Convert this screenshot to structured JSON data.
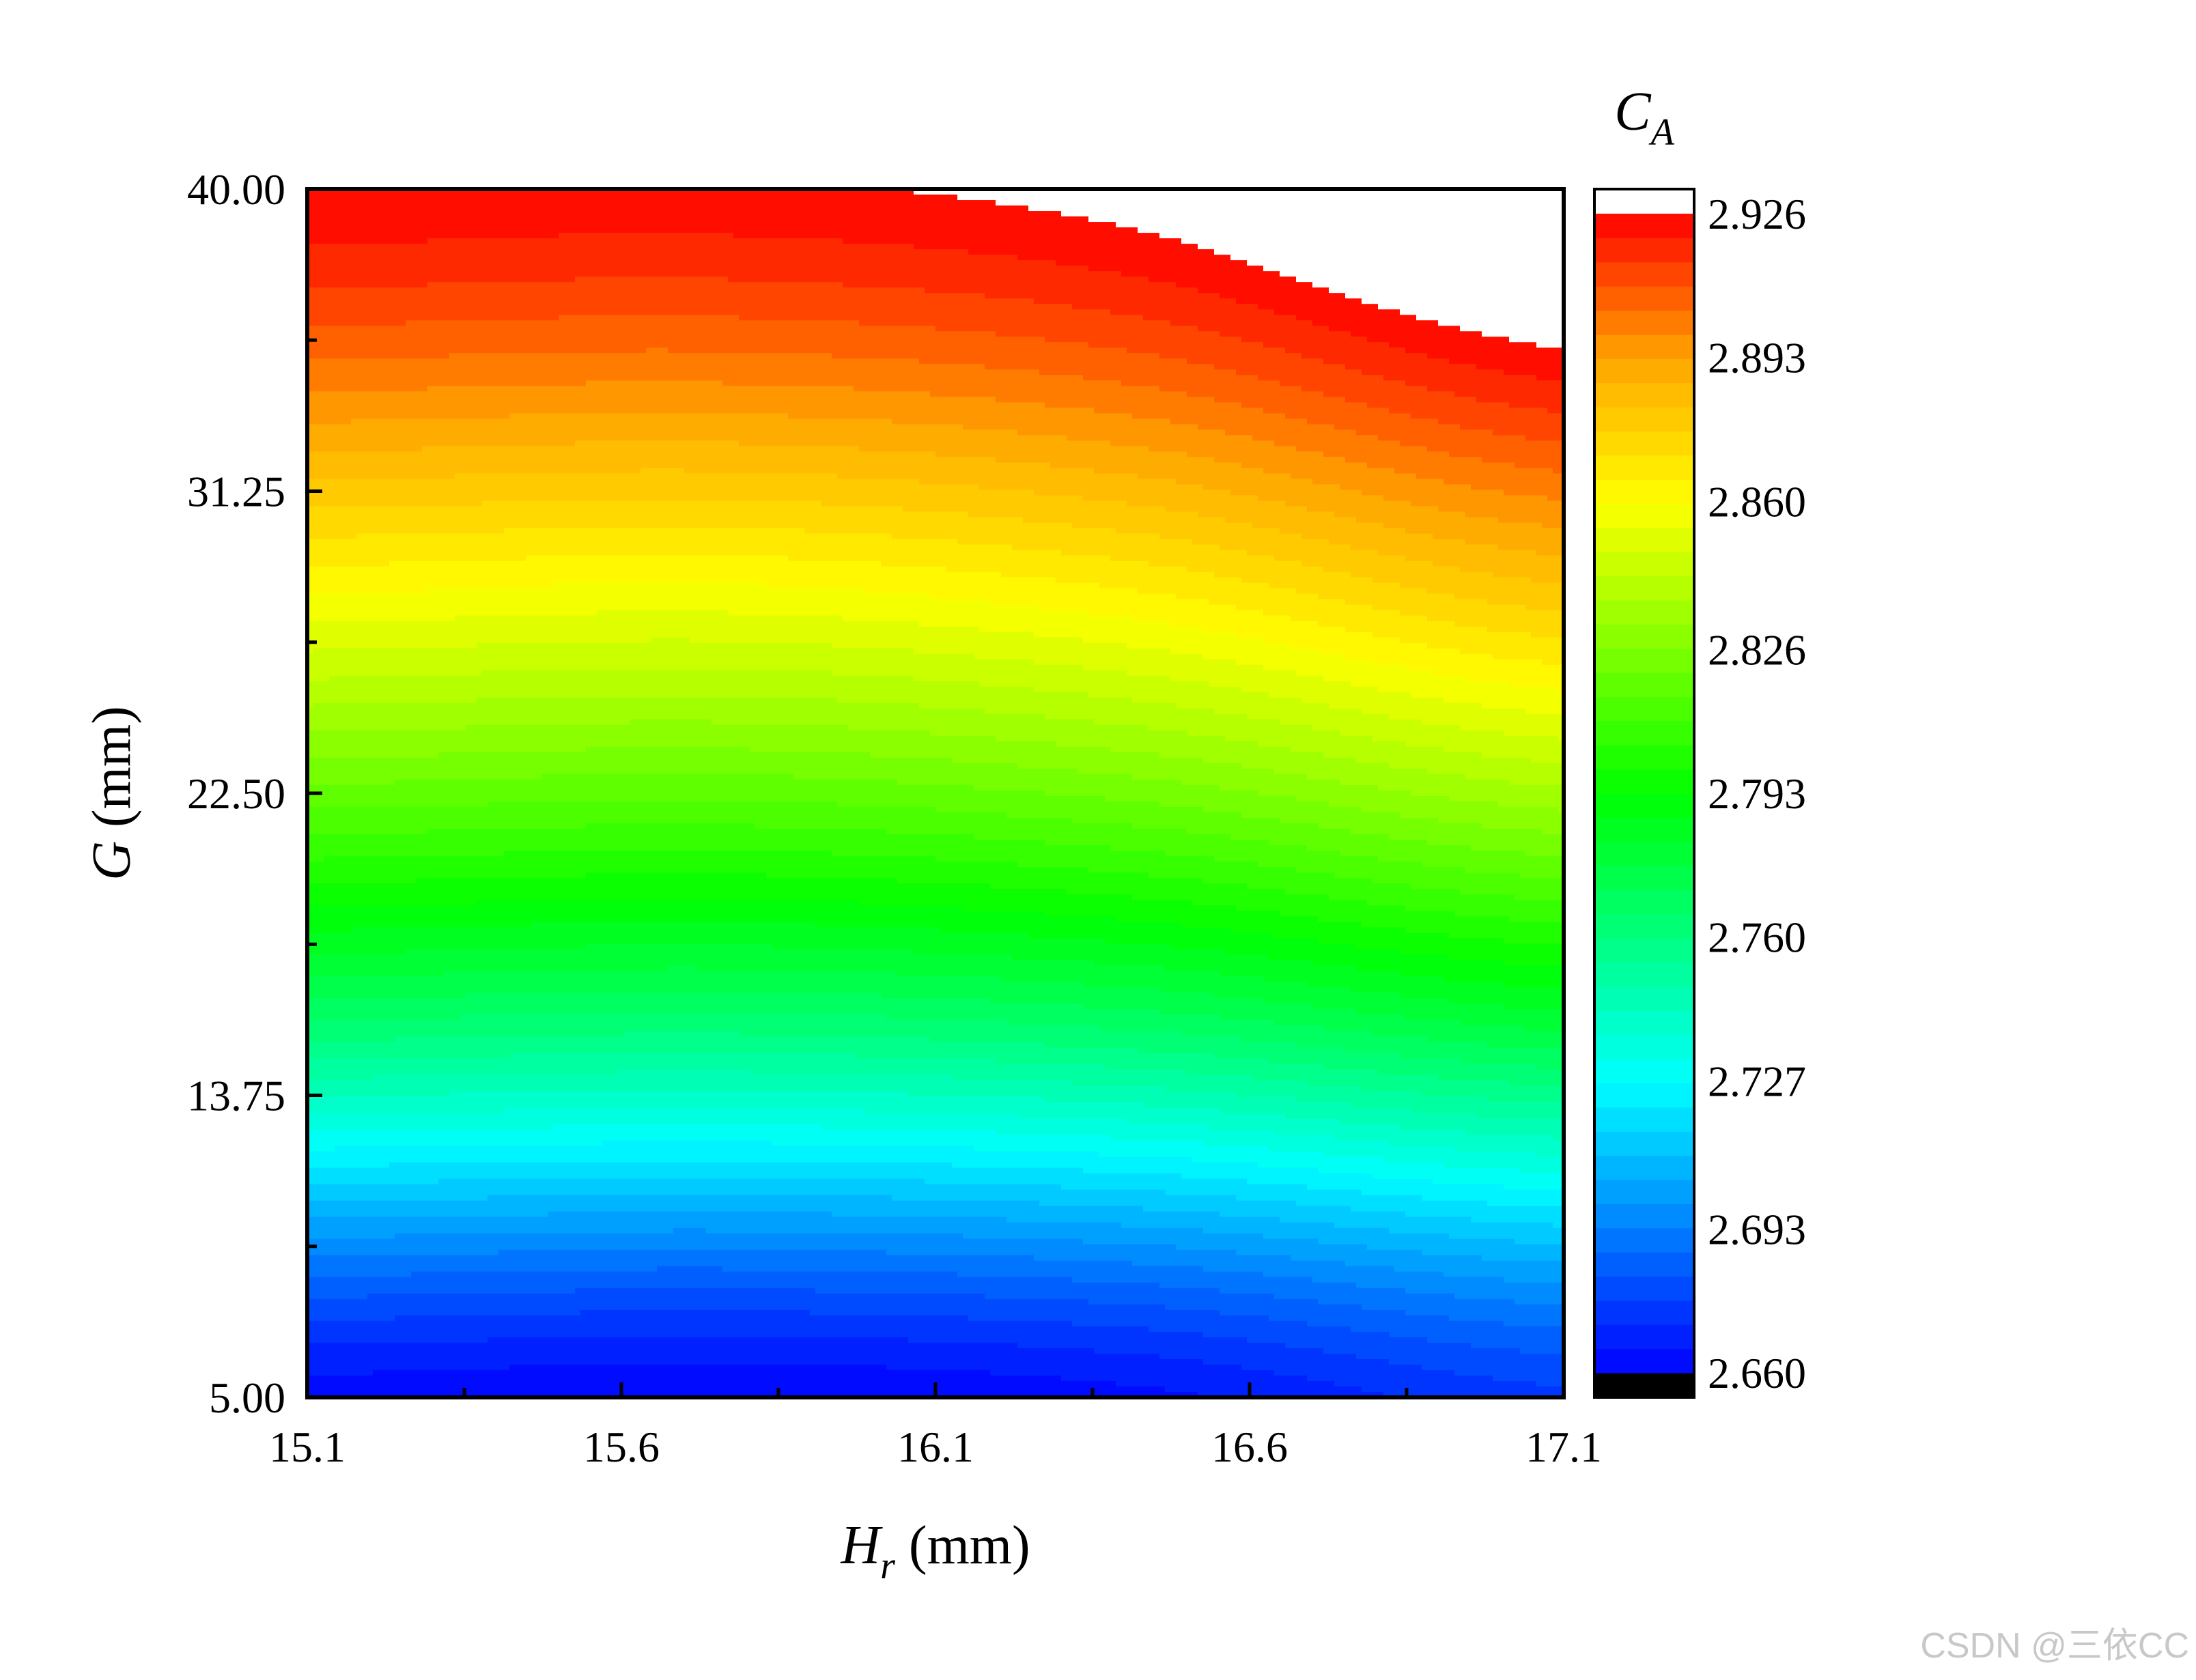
{
  "chart_data": {
    "type": "heatmap",
    "xlabel": {
      "var": "H",
      "sub": "r",
      "unit": " (mm)"
    },
    "ylabel": {
      "var": "G",
      "unit": " (mm)"
    },
    "xlim": [
      15.1,
      17.1
    ],
    "ylim": [
      5.0,
      40.0
    ],
    "x_ticks": [
      "15.1",
      "15.6",
      "16.1",
      "16.6",
      "17.1"
    ],
    "y_ticks": [
      "5.00",
      "13.75",
      "22.50",
      "31.25",
      "40.00"
    ],
    "colorbar": {
      "title": {
        "var": "C",
        "sub": "A"
      },
      "range": [
        2.66,
        2.926
      ],
      "tick_values": [
        2.66,
        2.693,
        2.727,
        2.76,
        2.793,
        2.826,
        2.86,
        2.893,
        2.926
      ],
      "tick_labels": [
        "2.660",
        "2.693",
        "2.727",
        "2.760",
        "2.793",
        "2.826",
        "2.860",
        "2.893",
        "2.926"
      ],
      "levels": 48,
      "under_color": "#000000",
      "over_color": "#ffffff"
    },
    "colormap": [
      "#0000ff",
      "#0080ff",
      "#00ffff",
      "#00ff80",
      "#00ff00",
      "#80ff00",
      "#ffff00",
      "#ffa500",
      "#ff0000"
    ],
    "grid": [
      [
        2.662,
        2.66,
        2.664,
        2.675
      ],
      [
        2.772,
        2.77,
        2.775,
        2.786
      ],
      [
        2.86,
        2.858,
        2.865,
        2.88
      ],
      [
        2.926,
        2.925,
        2.93,
        2.946
      ]
    ],
    "grid_x": [
      15.1,
      15.767,
      16.433,
      17.1
    ],
    "grid_y": [
      5.0,
      16.667,
      28.333,
      40.0
    ]
  },
  "watermark": "CSDN @三依CC"
}
